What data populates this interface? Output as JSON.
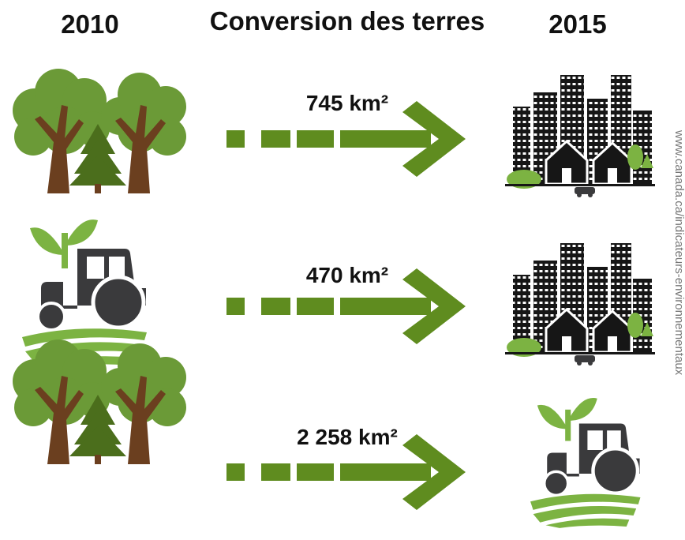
{
  "header": {
    "left_year": "2010",
    "title": "Conversion des terres",
    "right_year": "2015"
  },
  "rows": [
    {
      "label": "745 km²"
    },
    {
      "label": "470 km²"
    },
    {
      "label": "2 258 km²"
    }
  ],
  "source": "www.canada.ca/indicateurs-environnementaux"
}
